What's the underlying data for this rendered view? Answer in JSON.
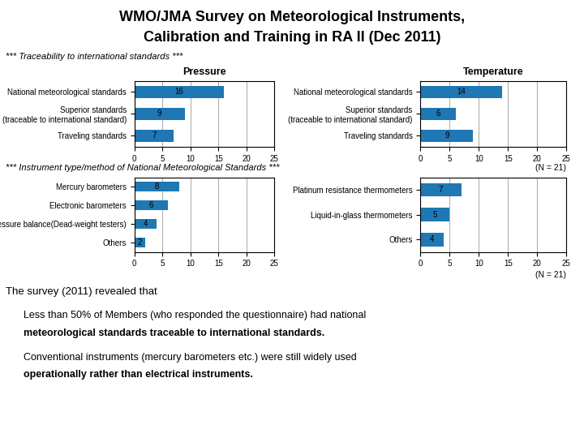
{
  "title": "WMO/JMA Survey on Meteorological Instruments,",
  "subtitle": "Calibration and Training in RA II (Dec 2011)",
  "annotations": [
    "*** Traceability to international standards ***",
    "(N = 21)",
    "*** Instrument type/method of National Meteorological Standards ***",
    "(N = 21)",
    "The survey (2011) revealed that",
    "Less than 50% of Members (who responded the questionnaire) had national",
    "meteorological standards traceable to international standards.",
    "Conventional instruments (mercury barometers etc.) were still widely used",
    "operationally rather than electrical instruments."
  ],
  "chart_data": [
    {
      "type": "bar",
      "orientation": "horizontal",
      "title": "Pressure",
      "categories": [
        "National meteorological standards",
        "Superior standards\n(traceable to international standard)",
        "Traveling standards"
      ],
      "values": [
        16,
        9,
        7
      ],
      "xlim": [
        0,
        25
      ],
      "xticks": [
        0,
        5,
        10,
        15,
        20,
        25
      ],
      "grid": true,
      "data_labels": true
    },
    {
      "type": "bar",
      "orientation": "horizontal",
      "title": "Temperature",
      "categories": [
        "National meteorological standards",
        "Superior standards\n(traceable to international standard)",
        "Traveling standards"
      ],
      "values": [
        14,
        6,
        9
      ],
      "xlim": [
        0,
        25
      ],
      "xticks": [
        0,
        5,
        10,
        15,
        20,
        25
      ],
      "grid": true,
      "data_labels": true
    },
    {
      "type": "bar",
      "orientation": "horizontal",
      "categories": [
        "Mercury barometers",
        "Electronic barometers",
        "Pressure balance(Dead-weight testers)",
        "Others"
      ],
      "values": [
        8,
        6,
        4,
        2
      ],
      "xlim": [
        0,
        25
      ],
      "xticks": [
        0,
        5,
        10,
        15,
        20,
        25
      ],
      "grid": true,
      "data_labels": true
    },
    {
      "type": "bar",
      "orientation": "horizontal",
      "categories": [
        "Platinum resistance thermometers",
        "Liquid-in-glass thermometers",
        "Others"
      ],
      "values": [
        7,
        5,
        4
      ],
      "xlim": [
        0,
        25
      ],
      "xticks": [
        0,
        5,
        10,
        15,
        20,
        25
      ],
      "grid": true,
      "data_labels": true
    }
  ]
}
